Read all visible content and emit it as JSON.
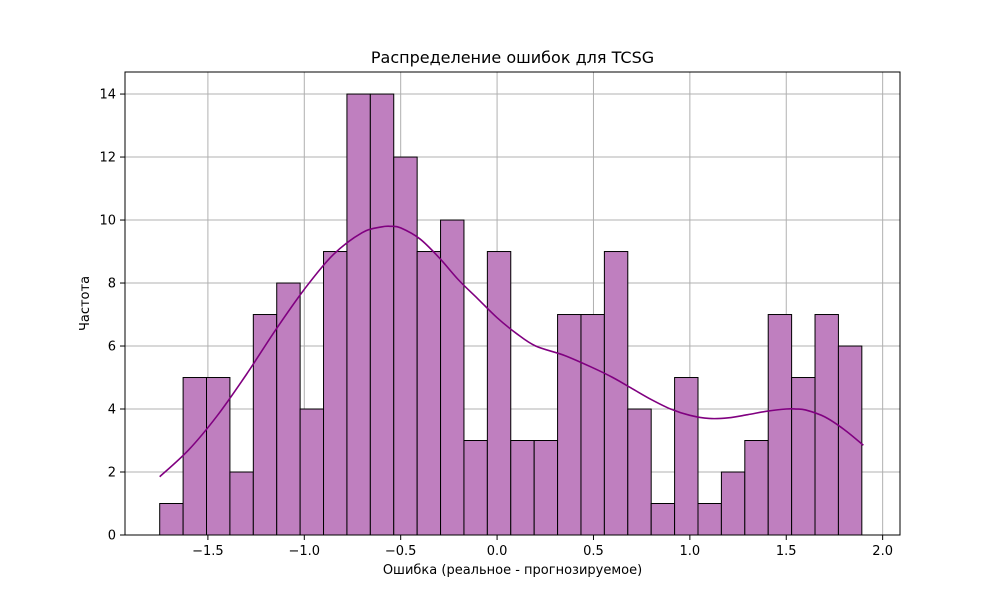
{
  "chart_data": {
    "type": "bar",
    "title": "Распределение ошибок для TCSG",
    "xlabel": "Ошибка (реальное - прогнозируемое)",
    "ylabel": "Частота",
    "xlim": [
      -1.93,
      2.09
    ],
    "ylim": [
      0,
      14.7
    ],
    "x_ticks": [
      -1.5,
      -1.0,
      -0.5,
      0.0,
      0.5,
      1.0,
      1.5,
      2.0
    ],
    "x_tick_labels": [
      "−1.5",
      "−1.0",
      "−0.5",
      "0.0",
      "0.5",
      "1.0",
      "1.5",
      "2.0"
    ],
    "y_ticks": [
      0,
      2,
      4,
      6,
      8,
      10,
      12,
      14
    ],
    "y_tick_labels": [
      "0",
      "2",
      "4",
      "6",
      "8",
      "10",
      "12",
      "14"
    ],
    "grid": true,
    "bins": {
      "start": -1.75,
      "width": 0.1214,
      "counts": [
        1,
        5,
        5,
        2,
        7,
        8,
        4,
        9,
        14,
        14,
        12,
        9,
        10,
        3,
        9,
        3,
        3,
        7,
        7,
        9,
        4,
        1,
        5,
        1,
        2,
        3,
        7,
        5,
        7,
        6
      ]
    },
    "kde": {
      "x": [
        -1.75,
        -1.6,
        -1.45,
        -1.3,
        -1.15,
        -1.0,
        -0.85,
        -0.7,
        -0.6,
        -0.55,
        -0.5,
        -0.4,
        -0.3,
        -0.2,
        -0.1,
        0.0,
        0.1,
        0.2,
        0.35,
        0.5,
        0.6,
        0.7,
        0.8,
        0.9,
        1.0,
        1.1,
        1.2,
        1.3,
        1.4,
        1.5,
        1.55,
        1.6,
        1.7,
        1.8,
        1.9
      ],
      "y": [
        1.85,
        2.7,
        3.8,
        5.1,
        6.5,
        7.8,
        8.9,
        9.6,
        9.78,
        9.8,
        9.75,
        9.4,
        8.8,
        8.1,
        7.5,
        6.9,
        6.4,
        6.0,
        5.7,
        5.3,
        5.0,
        4.65,
        4.3,
        4.0,
        3.8,
        3.7,
        3.72,
        3.82,
        3.93,
        4.0,
        4.0,
        3.97,
        3.75,
        3.35,
        2.85
      ]
    },
    "colors": {
      "bar_fill": "#bf7fbf",
      "bar_edge": "#000000",
      "kde_line": "#800080",
      "grid": "#b0b0b0"
    }
  }
}
